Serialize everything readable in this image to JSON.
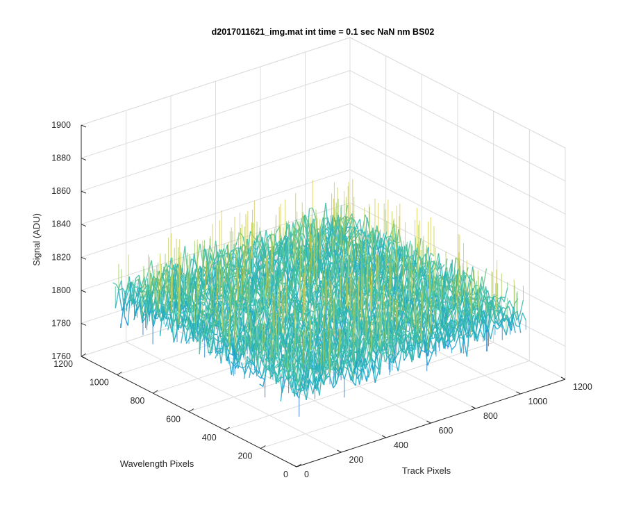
{
  "chart_data": {
    "type": "surface",
    "title": "d2017011621_img.mat int time = 0.1 sec  NaN nm BS02",
    "xlabel": "Track Pixels",
    "ylabel": "Wavelength Pixels",
    "zlabel": "Signal (ADU)",
    "xlim": [
      0,
      1200
    ],
    "ylim": [
      0,
      1200
    ],
    "zlim": [
      1760,
      1900
    ],
    "x_ticks": [
      "0",
      "200",
      "400",
      "600",
      "800",
      "1000",
      "1200"
    ],
    "y_ticks": [
      "0",
      "200",
      "400",
      "600",
      "800",
      "1000",
      "1200"
    ],
    "z_ticks": [
      "1760",
      "1780",
      "1800",
      "1820",
      "1840",
      "1860",
      "1880",
      "1900"
    ],
    "data_extent": {
      "x": [
        0,
        1024
      ],
      "y": [
        0,
        1024
      ]
    },
    "signal_mean": 1808,
    "signal_range_typical": [
      1785,
      1835
    ],
    "signal_max_approx": 1880,
    "signal_min_approx": 1760,
    "colormap": "parula",
    "grid": true,
    "view": "3d"
  }
}
